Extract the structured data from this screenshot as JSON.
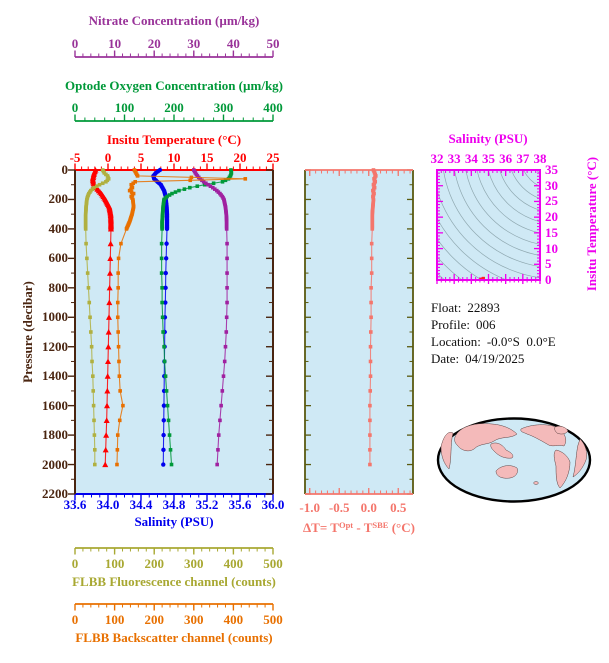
{
  "colors": {
    "nitrate": "#993399",
    "oxygen": "#009939",
    "temperature": "#ff0000",
    "salinity": "#0000ee",
    "fluorescence": "#a8a832",
    "backscatter": "#e87000",
    "delta_t": "#f4766c",
    "ts_axes": "#ee00ee",
    "pressure_axis": "#4a2510",
    "plot_background": "#cfe9f5",
    "map_land": "#f4baba",
    "map_ocean": "#cfe9f5"
  },
  "float_info": {
    "float_label": "Float:",
    "float_value": "22893",
    "profile_label": "Profile:",
    "profile_value": "006",
    "location_label": "Location:",
    "location_value": "-0.0°S  0.0°E",
    "date_label": "Date:",
    "date_value": "04/19/2025"
  },
  "chart_data": [
    {
      "type": "line",
      "description": "Multi-variable vertical ocean profile vs pressure",
      "y_axis": {
        "label": "Pressure (decibar)",
        "min": 0,
        "max": 2200,
        "ticks": [
          "0",
          "200",
          "400",
          "600",
          "800",
          "1000",
          "1200",
          "1400",
          "1600",
          "1800",
          "2000",
          "2200"
        ],
        "minor_step": 100,
        "color": "#4a2510"
      },
      "x_axes": [
        {
          "id": "nitrate",
          "label": "Nitrate Concentration (µm/kg)",
          "min": 0,
          "max": 50,
          "ticks": [
            "0",
            "10",
            "20",
            "30",
            "40",
            "50"
          ],
          "minor_step": 2,
          "color": "#993399",
          "position": "top-outer"
        },
        {
          "id": "oxygen",
          "label": "Optode Oxygen Concentration (µm/kg)",
          "min": 0,
          "max": 400,
          "ticks": [
            "0",
            "100",
            "200",
            "300",
            "400"
          ],
          "minor_step": 20,
          "color": "#009939",
          "position": "top-middle"
        },
        {
          "id": "temperature",
          "label": "Insitu Temperature (°C)",
          "min": -5,
          "max": 25,
          "ticks": [
            "-5",
            "0",
            "5",
            "10",
            "15",
            "20",
            "25"
          ],
          "minor_step": 1,
          "color": "#ff0000",
          "position": "top-border"
        },
        {
          "id": "salinity",
          "label": "Salinity (PSU)",
          "min": 33.6,
          "max": 36.0,
          "ticks": [
            "33.6",
            "34.0",
            "34.4",
            "34.8",
            "35.2",
            "35.6",
            "36.0"
          ],
          "minor_step": 0.1,
          "color": "#0000ee",
          "position": "bottom-border"
        },
        {
          "id": "fluorescence",
          "label": "FLBB Fluorescence channel (counts)",
          "min": 0,
          "max": 500,
          "ticks": [
            "0",
            "100",
            "200",
            "300",
            "400",
            "500"
          ],
          "minor_step": 20,
          "color": "#a8a832",
          "position": "bottom-middle"
        },
        {
          "id": "backscatter",
          "label": "FLBB Backscatter channel (counts)",
          "min": 0,
          "max": 500,
          "ticks": [
            "0",
            "100",
            "200",
            "300",
            "400",
            "500"
          ],
          "minor_step": 20,
          "color": "#e87000",
          "position": "bottom-outer"
        }
      ],
      "pressures": [
        0,
        20,
        40,
        60,
        80,
        100,
        120,
        140,
        160,
        180,
        200,
        250,
        300,
        350,
        400,
        500,
        600,
        700,
        800,
        900,
        1000,
        1100,
        1200,
        1300,
        1400,
        1500,
        1600,
        1700,
        1800,
        1900,
        2000
      ],
      "series": [
        {
          "name": "temperature",
          "axis": "temperature",
          "marker": "triangle",
          "color": "#ff0000",
          "values": [
            -1.9,
            -2.1,
            -2.2,
            -2.3,
            -2.25,
            -2.1,
            -1.8,
            -1.4,
            -1.0,
            -0.7,
            -0.4,
            0.2,
            0.4,
            0.45,
            0.45,
            0.4,
            0.35,
            0.3,
            0.25,
            0.2,
            0.15,
            0.1,
            0.05,
            0.0,
            -0.05,
            -0.1,
            -0.15,
            -0.2,
            -0.28,
            -0.35,
            -0.42
          ]
        },
        {
          "name": "salinity",
          "axis": "salinity",
          "marker": "circle",
          "color": "#0000ee",
          "values": [
            34.63,
            34.58,
            34.55,
            34.56,
            34.6,
            34.64,
            34.66,
            34.68,
            34.69,
            34.7,
            34.7,
            34.71,
            34.715,
            34.715,
            34.715,
            34.71,
            34.705,
            34.7,
            34.698,
            34.695,
            34.69,
            34.688,
            34.686,
            34.684,
            34.682,
            34.68,
            34.678,
            34.676,
            34.674,
            34.672,
            34.67
          ]
        },
        {
          "name": "oxygen",
          "axis": "oxygen",
          "marker": "square",
          "color": "#009939",
          "values": [
            315,
            316,
            314,
            310,
            298,
            262,
            232,
            210,
            196,
            186,
            180,
            178,
            177,
            176,
            176,
            175,
            175,
            175,
            176,
            176,
            177,
            178,
            180,
            181,
            183,
            185,
            187,
            189,
            191,
            193,
            195
          ]
        },
        {
          "name": "nitrate",
          "axis": "nitrate",
          "marker": "square",
          "color": "#a021a0",
          "values": [
            30.0,
            30.4,
            30.9,
            31.6,
            32.5,
            33.6,
            34.8,
            35.8,
            36.6,
            37.2,
            37.6,
            38.0,
            38.2,
            38.3,
            38.3,
            38.4,
            38.4,
            38.4,
            38.4,
            38.4,
            38.3,
            38.2,
            38.0,
            37.8,
            37.5,
            37.2,
            36.9,
            36.6,
            36.3,
            36.1,
            35.9
          ]
        },
        {
          "name": "fluorescence",
          "axis": "fluorescence",
          "marker": "square",
          "color": "#b0b040",
          "values": [
            70,
            74,
            82,
            85,
            78,
            62,
            48,
            40,
            35,
            32,
            30,
            28,
            27,
            27,
            27,
            28,
            30,
            32,
            34,
            36,
            38,
            40,
            42,
            43,
            45,
            46,
            47,
            48,
            49,
            50,
            50
          ]
        },
        {
          "name": "backscatter",
          "axis": "backscatter",
          "marker": "square",
          "color": "#e87000",
          "values": [
            150,
            154,
            158,
            430,
            152,
            142,
            145,
            138,
            148,
            142,
            146,
            148,
            144,
            138,
            130,
            116,
            110,
            109,
            109,
            108,
            108,
            109,
            110,
            111,
            112,
            114,
            121,
            113,
            108,
            107,
            106
          ]
        }
      ]
    },
    {
      "type": "line",
      "description": "Temperature difference Optode minus SBE vs pressure",
      "x_axis": {
        "min": -1.0,
        "max": 0.5,
        "ticks": [
          "-1.0",
          "-0.5",
          "0.0",
          "0.5"
        ],
        "minor_step": 0.1,
        "color": "#f4766c",
        "label_parts": {
          "p1": "ΔT= T",
          "s1": "Opt",
          "p2": " - T",
          "s2": "SBE",
          "p3": " (°C)"
        }
      },
      "pressures": [
        0,
        20,
        40,
        60,
        80,
        100,
        120,
        140,
        160,
        180,
        200,
        250,
        300,
        350,
        400,
        500,
        600,
        700,
        800,
        900,
        1000,
        1100,
        1200,
        1300,
        1400,
        1500,
        1600,
        1700,
        1800,
        1900,
        2000
      ],
      "values": [
        0.08,
        0.1,
        0.12,
        0.09,
        0.11,
        0.08,
        0.1,
        0.07,
        0.09,
        0.07,
        0.08,
        0.07,
        0.06,
        0.06,
        0.06,
        0.05,
        0.05,
        0.05,
        0.04,
        0.04,
        0.04,
        0.035,
        0.03,
        0.03,
        0.03,
        0.025,
        0.02,
        0.02,
        0.02,
        0.02,
        0.02
      ]
    },
    {
      "type": "scatter",
      "description": "T-S diagram with density contours",
      "x_axis": {
        "label": "Salinity (PSU)",
        "min": 32,
        "max": 38,
        "ticks": [
          "32",
          "33",
          "34",
          "35",
          "36",
          "37",
          "38"
        ],
        "minor_step": 0.25,
        "color": "#ee00ee"
      },
      "y_axis": {
        "label": "Insitu Temperature (°C)",
        "min": 0,
        "max": 35,
        "ticks": [
          "0",
          "5",
          "10",
          "15",
          "20",
          "25",
          "30",
          "35"
        ],
        "minor_step": 1,
        "color": "#ee00ee"
      },
      "points": [
        {
          "s": 34.55,
          "t": 0.05
        },
        {
          "s": 34.6,
          "t": 0.15
        },
        {
          "s": 34.65,
          "t": 0.3
        },
        {
          "s": 34.7,
          "t": 0.5
        },
        {
          "s": 34.67,
          "t": 0.1
        }
      ],
      "point_color": "#ff2222",
      "contours": "sigma-density isolines"
    }
  ],
  "map": {
    "name": "world-map-pacific-centered",
    "projection": "oval global projection",
    "land_color": "#f4baba",
    "ocean_color": "#cfe9f5"
  }
}
